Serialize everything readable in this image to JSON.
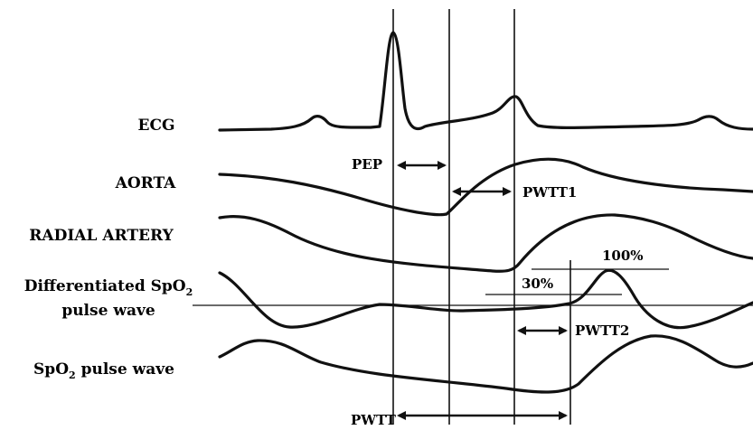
{
  "signals": {
    "ecg": "ECG",
    "aorta": "AORTA",
    "radial": "RADIAL ARTERY",
    "diff_line1_prefix": "Differentiated SpO",
    "diff_line1_sub": "2",
    "diff_line2": "pulse wave",
    "spo2_prefix": "SpO",
    "spo2_sub": "2",
    "spo2_suffix": " pulse wave"
  },
  "intervals": {
    "pep": "PEP",
    "pwtt1": "PWTT1",
    "pwtt2": "PWTT2",
    "pwtt": "PWTT"
  },
  "thresholds": {
    "high": "100%",
    "low": "30%"
  }
}
